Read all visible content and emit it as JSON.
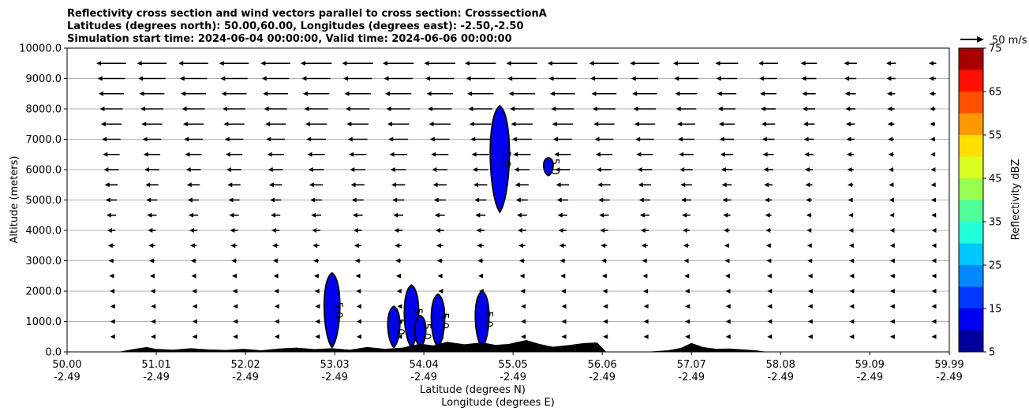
{
  "chart_data": {
    "type": "contour",
    "title_lines": [
      "Reflectivity cross section and wind vectors parallel to cross section: CrosssectionA",
      "Latitudes (degrees north): 50.00,60.00, Longitudes (degrees east): -2.50,-2.50",
      "Simulation start time: 2024-06-04 00:00:00, Valid time: 2024-06-06 00:00:00"
    ],
    "ylabel": "Altitude (meters)",
    "xlabel_lat": "Latitude (degrees N)",
    "xlabel_lon": "Longitude (degrees E)",
    "ylim": [
      0,
      10000
    ],
    "y_ticks": [
      "0.0",
      "1000.0",
      "2000.0",
      "3000.0",
      "4000.0",
      "5000.0",
      "6000.0",
      "7000.0",
      "8000.0",
      "9000.0",
      "10000.0"
    ],
    "xlim": [
      50.0,
      59.99
    ],
    "x_ticks": [
      {
        "lat": "50.00",
        "lon": "-2.49"
      },
      {
        "lat": "51.01",
        "lon": "-2.49"
      },
      {
        "lat": "52.02",
        "lon": "-2.49"
      },
      {
        "lat": "53.03",
        "lon": "-2.49"
      },
      {
        "lat": "54.04",
        "lon": "-2.49"
      },
      {
        "lat": "55.05",
        "lon": "-2.49"
      },
      {
        "lat": "56.06",
        "lon": "-2.49"
      },
      {
        "lat": "57.07",
        "lon": "-2.49"
      },
      {
        "lat": "58.08",
        "lon": "-2.49"
      },
      {
        "lat": "59.09",
        "lon": "-2.49"
      },
      {
        "lat": "59.99",
        "lon": "-2.49"
      }
    ],
    "grid": "horizontal",
    "reference_vector_label": "50 m/s",
    "colorbar": {
      "label": "Reflectivity dBZ",
      "levels": [
        5,
        10,
        15,
        20,
        25,
        30,
        35,
        40,
        45,
        50,
        55,
        60,
        65,
        70,
        75
      ],
      "tick_labels": [
        "5",
        "15",
        "25",
        "35",
        "45",
        "55",
        "65",
        "75"
      ],
      "colors": [
        "#00009c",
        "#0000f0",
        "#0038ff",
        "#0088ff",
        "#00c8ff",
        "#20ffd8",
        "#50ff98",
        "#98ff50",
        "#d8ff20",
        "#ffe000",
        "#ff9800",
        "#ff5000",
        "#ff1000",
        "#a80000"
      ]
    },
    "wind_field": {
      "lat_positions": [
        50.5,
        50.96,
        51.43,
        51.89,
        52.36,
        52.82,
        53.29,
        53.75,
        54.22,
        54.68,
        55.15,
        55.61,
        56.08,
        56.54,
        57.01,
        57.47,
        57.94,
        58.4,
        58.87,
        59.33,
        59.8
      ],
      "alt_positions": [
        500,
        1000,
        1500,
        2000,
        2500,
        3000,
        3500,
        4000,
        4500,
        5000,
        5500,
        6000,
        6500,
        7000,
        7500,
        8000,
        8500,
        9000,
        9500
      ],
      "peak_speed_ms": 50,
      "direction": "southward"
    },
    "reflectivity_cells": [
      {
        "lat_center": 53.0,
        "alt_top": 2600,
        "dbz": 5
      },
      {
        "lat_center": 53.7,
        "alt_top": 1500,
        "dbz": 5
      },
      {
        "lat_center": 53.9,
        "alt_top": 2200,
        "dbz": 5
      },
      {
        "lat_center": 54.0,
        "alt_top": 1200,
        "dbz": 5
      },
      {
        "lat_center": 54.2,
        "alt_top": 1900,
        "dbz": 5
      },
      {
        "lat_center": 54.7,
        "alt_top": 2000,
        "dbz": 5
      },
      {
        "lat_center": 54.9,
        "alt_top": 8100,
        "alt_bottom": 4600,
        "dbz": 5
      },
      {
        "lat_center": 55.45,
        "alt_top": 6400,
        "alt_bottom": 5800,
        "dbz": 5
      }
    ],
    "contour_label": "5.0"
  }
}
